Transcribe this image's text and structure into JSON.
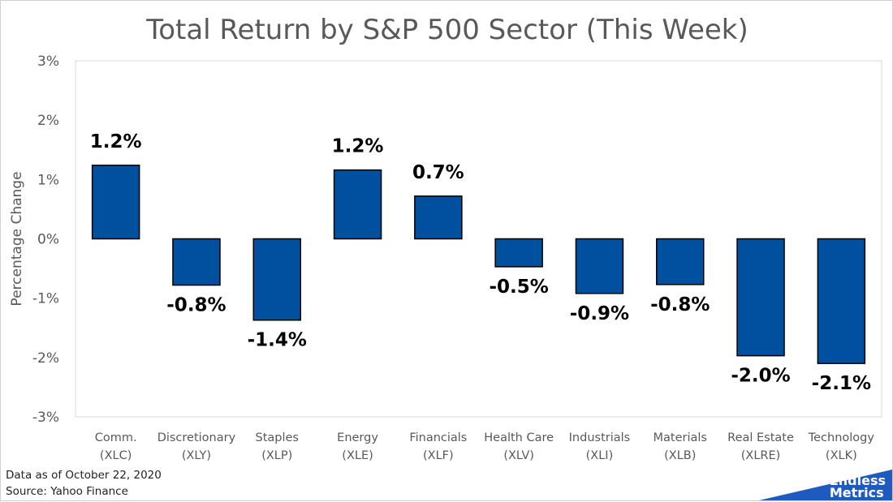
{
  "chart_data": {
    "type": "bar",
    "title": "Total Return by S&P 500 Sector (This Week)",
    "ylabel": "Percentage Change",
    "xlabel": "",
    "ylim": [
      -3,
      3
    ],
    "yticks": [
      3,
      2,
      1,
      0,
      -1,
      -2,
      -3
    ],
    "ytick_labels": [
      "3%",
      "2%",
      "1%",
      "0%",
      "-1%",
      "-2%",
      "-3%"
    ],
    "categories": [
      [
        "Comm.",
        "(XLC)"
      ],
      [
        "Discretionary",
        "(XLY)"
      ],
      [
        "Staples",
        "(XLP)"
      ],
      [
        "Energy",
        "(XLE)"
      ],
      [
        "Financials",
        "(XLF)"
      ],
      [
        "Health Care",
        "(XLV)"
      ],
      [
        "Industrials",
        "(XLI)"
      ],
      [
        "Materials",
        "(XLB)"
      ],
      [
        "Real Estate",
        "(XLRE)"
      ],
      [
        "Technology",
        "(XLK)"
      ]
    ],
    "values": [
      1.24,
      -0.78,
      -1.37,
      1.16,
      0.72,
      -0.47,
      -0.92,
      -0.77,
      -1.97,
      -2.1
    ],
    "data_labels": [
      "1.2%",
      "-0.8%",
      "-1.4%",
      "1.2%",
      "0.7%",
      "-0.5%",
      "-0.9%",
      "-0.8%",
      "-2.0%",
      "-2.1%"
    ],
    "bar_color": "#0050a0",
    "bar_edge_color": "#000000",
    "grid": false,
    "legend": "none"
  },
  "footnote": {
    "line1": "Data as of October 22, 2020",
    "line2": "Source: Yahoo Finance"
  },
  "logo": {
    "line1": "Endless",
    "line2": "Metrics",
    "color": "#1f5bbf"
  }
}
